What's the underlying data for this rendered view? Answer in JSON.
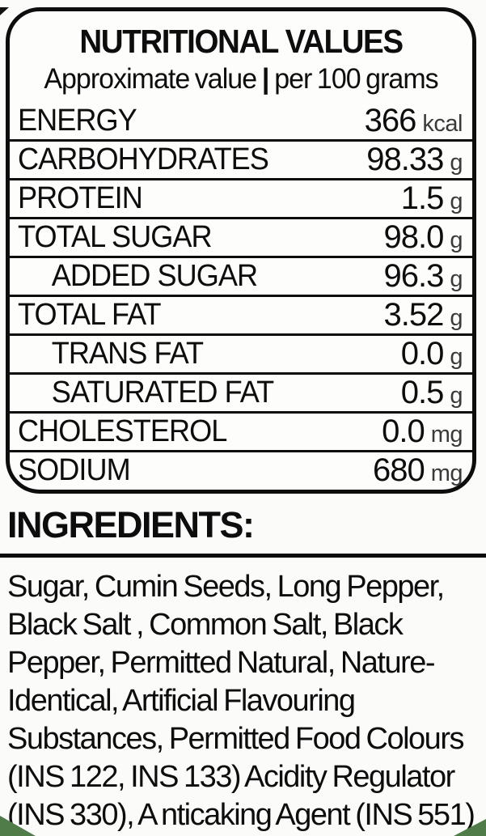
{
  "panel": {
    "title": "NUTRITIONAL VALUES",
    "subtitle": {
      "left": "Approximate value",
      "divider": "|",
      "right": "per 100 grams"
    },
    "rows": [
      {
        "label": "ENERGY",
        "value": "366",
        "unit": "kcal"
      },
      {
        "label": "CARBOHYDRATES",
        "value": "98.33",
        "unit": "g"
      },
      {
        "label": "PROTEIN",
        "value": "1.5",
        "unit": "g"
      },
      {
        "label": "TOTAL SUGAR",
        "value": "98.0",
        "unit": "g"
      },
      {
        "label": "ADDED SUGAR",
        "value": "96.3",
        "unit": "g"
      },
      {
        "label": "TOTAL FAT",
        "value": "3.52",
        "unit": "g"
      },
      {
        "label": "TRANS FAT",
        "value": "0.0",
        "unit": "g"
      },
      {
        "label": "SATURATED FAT",
        "value": "0.5",
        "unit": "g"
      },
      {
        "label": "CHOLESTEROL",
        "value": "0.0",
        "unit": "mg"
      },
      {
        "label": "SODIUM",
        "value": "680",
        "unit": "mg"
      }
    ]
  },
  "ingredients": {
    "heading": "INGREDIENTS:",
    "lines": [
      "Sugar, Cumin Seeds, Long Pepper,",
      "Black Salt , Common Salt, Black",
      "Pepper, Permitted Natural, Nature-",
      "Identical, Artificial Flavouring",
      "Substances, Permitted Food Colours",
      "(INS 122, INS 133) Acidity Regulator",
      "(INS 330), A nticaking Agent (INS 551)"
    ]
  },
  "colors": {
    "text": "#0d0d0d",
    "background": "#fbfbfa",
    "corner_green": "#507c49"
  }
}
